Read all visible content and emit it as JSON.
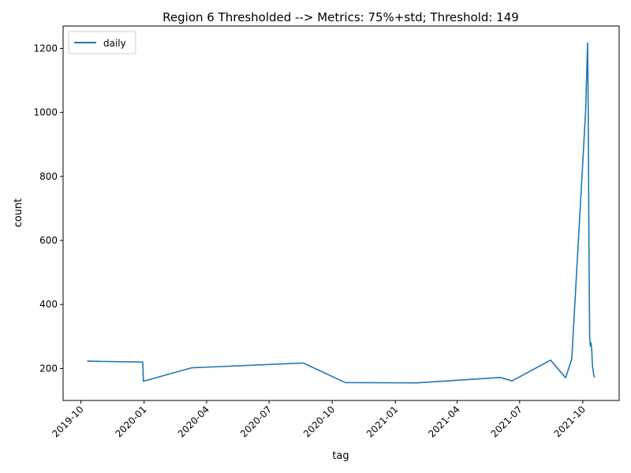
{
  "chart_data": {
    "type": "line",
    "title": "Region 6 Thresholded --> Metrics: 75%+std; Threshold: 149",
    "xlabel": "tag",
    "ylabel": "count",
    "grid": false,
    "legend_position": "upper-left",
    "ylim": [
      100,
      1270
    ],
    "xlim": [
      "2019-09-05",
      "2021-11-23"
    ],
    "y_ticks": [
      200,
      400,
      600,
      800,
      1000,
      1200
    ],
    "x_ticks": [
      "2019-10",
      "2020-01",
      "2020-04",
      "2020-07",
      "2020-10",
      "2021-01",
      "2021-04",
      "2021-07",
      "2021-10"
    ],
    "x_tick_dates": [
      "2019-10-01",
      "2020-01-01",
      "2020-04-01",
      "2020-07-01",
      "2020-10-01",
      "2021-01-01",
      "2021-04-01",
      "2021-07-01",
      "2021-10-01"
    ],
    "series": [
      {
        "name": "daily",
        "color": "#1f77b4",
        "x": [
          "2019-10-10",
          "2019-12-30",
          "2019-12-31",
          "2020-03-10",
          "2020-08-20",
          "2020-10-20",
          "2021-02-01",
          "2021-06-03",
          "2021-06-20",
          "2021-08-15",
          "2021-09-06",
          "2021-09-15",
          "2021-10-05",
          "2021-10-08",
          "2021-10-09",
          "2021-10-10",
          "2021-10-11",
          "2021-10-12",
          "2021-10-13",
          "2021-10-14",
          "2021-10-15",
          "2021-10-16",
          "2021-10-17",
          "2021-10-18"
        ],
        "y": [
          223,
          220,
          160,
          202,
          217,
          156,
          155,
          172,
          161,
          226,
          171,
          230,
          1000,
          1217,
          1000,
          580,
          300,
          270,
          280,
          260,
          210,
          195,
          180,
          172
        ]
      }
    ]
  }
}
